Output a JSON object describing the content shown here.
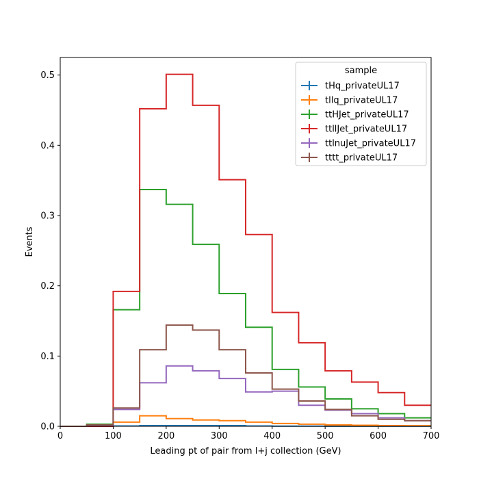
{
  "chart_data": {
    "type": "step-histogram",
    "xlabel": "Leading pt of pair from l+j collection (GeV)",
    "ylabel": "Events",
    "xlim": [
      0,
      700
    ],
    "ylim": [
      0,
      0.525
    ],
    "xticks": [
      0,
      100,
      200,
      300,
      400,
      500,
      600,
      700
    ],
    "yticks": [
      0.0,
      0.1,
      0.2,
      0.3,
      0.4,
      0.5
    ],
    "ytick_labels": [
      "0.0",
      "0.1",
      "0.2",
      "0.3",
      "0.4",
      "0.5"
    ],
    "grid": false,
    "bin_edges": [
      0,
      50,
      100,
      150,
      200,
      250,
      300,
      350,
      400,
      450,
      500,
      550,
      600,
      650,
      700
    ],
    "legend": {
      "title": "sample",
      "placement": "top-right"
    },
    "series": [
      {
        "name": "tHq_privateUL17",
        "color": "#1f77b4",
        "values": [
          0,
          0,
          0.0005,
          0.001,
          0.001,
          0.001,
          0.001,
          0.0005,
          0.0003,
          0.0002,
          0.0001,
          0.0001,
          0.0001,
          0.0001
        ]
      },
      {
        "name": "tllq_privateUL17",
        "color": "#ff7f0e",
        "values": [
          0,
          0.0005,
          0.006,
          0.015,
          0.011,
          0.009,
          0.008,
          0.006,
          0.004,
          0.003,
          0.002,
          0.0015,
          0.001,
          0.0008
        ]
      },
      {
        "name": "ttHJet_privateUL17",
        "color": "#2ca02c",
        "values": [
          0,
          0.003,
          0.166,
          0.337,
          0.316,
          0.259,
          0.189,
          0.141,
          0.081,
          0.056,
          0.039,
          0.025,
          0.018,
          0.012
        ]
      },
      {
        "name": "ttllJet_privateUL17",
        "color": "#d62728",
        "values": [
          0,
          0,
          0.192,
          0.452,
          0.501,
          0.457,
          0.351,
          0.273,
          0.162,
          0.119,
          0.079,
          0.063,
          0.048,
          0.03
        ]
      },
      {
        "name": "ttlnuJet_privateUL17",
        "color": "#9467bd",
        "values": [
          0,
          0.001,
          0.024,
          0.062,
          0.086,
          0.079,
          0.068,
          0.049,
          0.05,
          0.03,
          0.023,
          0.018,
          0.012,
          0.008
        ]
      },
      {
        "name": "tttt_privateUL17",
        "color": "#8c564b",
        "values": [
          0,
          0.002,
          0.026,
          0.109,
          0.144,
          0.137,
          0.109,
          0.076,
          0.053,
          0.036,
          0.024,
          0.015,
          0.01,
          0.008
        ]
      }
    ]
  }
}
